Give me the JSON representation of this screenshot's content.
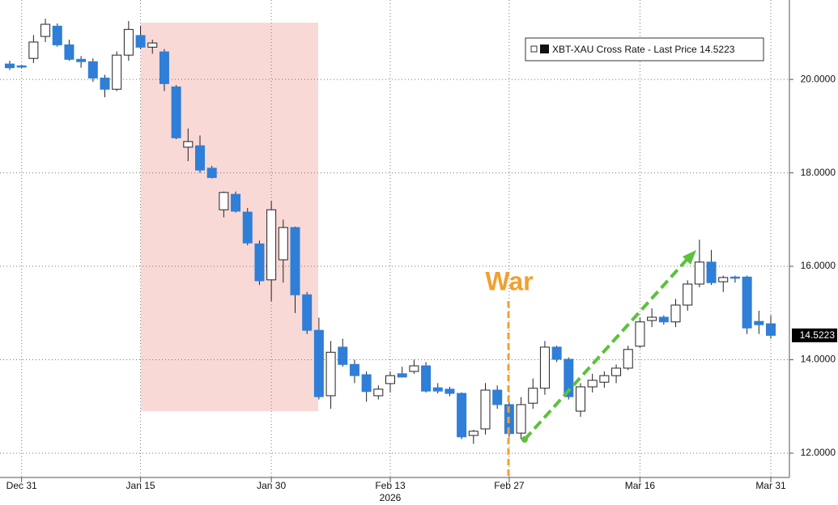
{
  "chart_data": {
    "type": "candlestick",
    "categories": [
      null,
      "Dec 31",
      null,
      null,
      null,
      null,
      null,
      null,
      null,
      null,
      null,
      "Jan 15",
      null,
      null,
      null,
      null,
      null,
      null,
      null,
      null,
      null,
      null,
      "Jan 30",
      null,
      null,
      null,
      null,
      null,
      null,
      null,
      null,
      null,
      "Feb 13",
      null,
      null,
      null,
      null,
      null,
      null,
      null,
      null,
      null,
      "Feb 27",
      null,
      null,
      null,
      null,
      null,
      null,
      null,
      null,
      null,
      null,
      "Mar 16",
      null,
      null,
      null,
      null,
      null,
      null,
      null,
      null,
      null,
      null,
      "Mar 31"
    ],
    "x_year_label": "2026",
    "series": [
      {
        "name": "XBT-XAU Cross Rate - Last Price",
        "up_color": "#ffffff",
        "down_color": "#2f7ed8",
        "open": [
          20.33,
          20.29,
          20.45,
          20.92,
          21.14,
          20.74,
          20.43,
          20.38,
          20.03,
          19.79,
          20.52,
          20.94,
          20.69,
          20.59,
          19.84,
          18.55,
          18.58,
          18.1,
          17.21,
          17.54,
          17.16,
          16.48,
          15.71,
          16.14,
          16.83,
          15.39,
          14.63,
          13.23,
          14.27,
          13.9,
          13.68,
          13.23,
          13.49,
          13.7,
          13.75,
          13.87,
          13.4,
          13.37,
          13.28,
          12.38,
          12.52,
          13.35,
          13.04,
          12.43,
          13.07,
          13.39,
          14.27,
          14.01,
          12.9,
          13.42,
          13.52,
          13.66,
          13.82,
          14.29,
          14.84,
          14.91,
          14.81,
          15.17,
          15.62,
          16.09,
          15.67,
          15.77,
          15.77,
          14.82,
          14.77
        ],
        "high": [
          20.4,
          20.31,
          20.95,
          21.3,
          21.2,
          20.85,
          20.5,
          20.45,
          20.1,
          20.6,
          21.25,
          21.15,
          20.85,
          20.65,
          19.88,
          18.95,
          18.8,
          18.15,
          17.6,
          17.6,
          17.25,
          16.55,
          17.4,
          17.0,
          16.85,
          15.45,
          14.9,
          14.4,
          14.45,
          14.0,
          13.75,
          13.45,
          13.75,
          13.85,
          14.0,
          13.95,
          13.5,
          13.42,
          13.3,
          12.5,
          13.5,
          13.45,
          13.2,
          13.2,
          13.6,
          14.4,
          14.3,
          14.05,
          13.5,
          13.7,
          13.75,
          13.9,
          14.3,
          14.9,
          15.1,
          14.95,
          15.3,
          15.7,
          16.57,
          16.35,
          15.8,
          15.8,
          15.8,
          15.05,
          14.95
        ],
        "low": [
          20.2,
          20.24,
          20.35,
          20.8,
          20.7,
          20.4,
          20.25,
          19.95,
          19.62,
          19.75,
          20.4,
          20.65,
          20.55,
          19.75,
          18.72,
          18.25,
          18.0,
          17.88,
          17.05,
          17.15,
          16.45,
          15.6,
          15.25,
          15.65,
          15.0,
          14.55,
          13.15,
          12.95,
          13.85,
          13.5,
          13.1,
          13.15,
          13.3,
          13.62,
          13.7,
          13.3,
          13.28,
          13.22,
          12.3,
          12.2,
          12.4,
          12.95,
          12.35,
          12.3,
          12.95,
          13.25,
          13.95,
          13.15,
          12.78,
          13.3,
          13.4,
          13.5,
          13.78,
          14.25,
          14.7,
          14.75,
          14.7,
          15.05,
          15.55,
          15.6,
          15.45,
          15.65,
          14.55,
          14.55,
          14.45
        ],
        "close": [
          20.25,
          20.27,
          20.8,
          21.18,
          20.74,
          20.43,
          20.38,
          20.03,
          19.79,
          20.52,
          21.07,
          20.69,
          20.78,
          19.91,
          18.75,
          18.67,
          18.06,
          17.9,
          17.58,
          17.18,
          16.5,
          15.69,
          17.21,
          16.83,
          15.39,
          14.63,
          13.21,
          14.16,
          13.9,
          13.66,
          13.32,
          13.37,
          13.66,
          13.63,
          13.87,
          13.33,
          13.33,
          13.28,
          12.35,
          12.47,
          13.35,
          13.04,
          12.42,
          13.04,
          13.39,
          14.27,
          14.01,
          13.21,
          13.42,
          13.56,
          13.66,
          13.82,
          14.22,
          14.81,
          14.91,
          14.81,
          15.17,
          15.62,
          16.09,
          15.65,
          15.76,
          15.76,
          14.68,
          14.75,
          14.5223
        ]
      }
    ],
    "ylim": [
      11.48,
      21.7
    ],
    "yticks": [
      {
        "value": 12,
        "label": "12.0000"
      },
      {
        "value": 14,
        "label": "14.0000"
      },
      {
        "value": 16,
        "label": "16.0000"
      },
      {
        "value": 18,
        "label": "18.0000"
      },
      {
        "value": 20,
        "label": "20.0000"
      }
    ],
    "grid": true,
    "annotation": "War"
  }
}
